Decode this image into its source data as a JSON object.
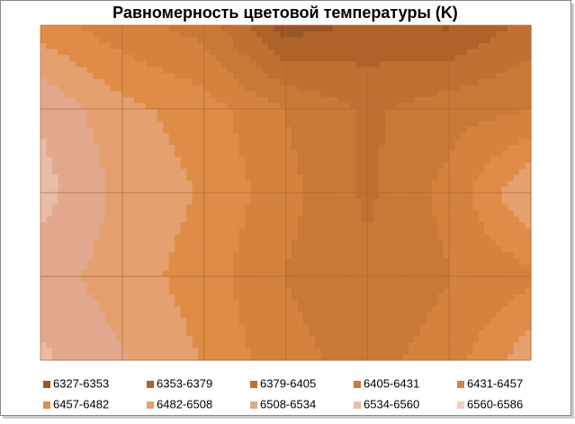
{
  "chart_data": {
    "type": "surface",
    "title": "Равномерность цветовой температуры (K)",
    "values": [
      [
        6470,
        6440,
        6420,
        6340,
        6360,
        6350,
        6390
      ],
      [
        6530,
        6490,
        6470,
        6430,
        6400,
        6420,
        6430
      ],
      [
        6545,
        6500,
        6480,
        6440,
        6400,
        6440,
        6510
      ],
      [
        6520,
        6495,
        6470,
        6430,
        6410,
        6430,
        6450
      ],
      [
        6540,
        6510,
        6480,
        6440,
        6420,
        6445,
        6500
      ]
    ],
    "bands": [
      {
        "name": "6327-6353",
        "min": 6327,
        "max": 6353,
        "color": "#9a5622"
      },
      {
        "name": "6353-6379",
        "min": 6353,
        "max": 6379,
        "color": "#ad6329"
      },
      {
        "name": "6379-6405",
        "min": 6379,
        "max": 6405,
        "color": "#bf7032"
      },
      {
        "name": "6405-6431",
        "min": 6405,
        "max": 6431,
        "color": "#c97936"
      },
      {
        "name": "6431-6457",
        "min": 6431,
        "max": 6457,
        "color": "#d4823c"
      },
      {
        "name": "6457-6482",
        "min": 6457,
        "max": 6482,
        "color": "#de8c46"
      },
      {
        "name": "6482-6508",
        "min": 6482,
        "max": 6508,
        "color": "#e4a06e"
      },
      {
        "name": "6508-6534",
        "min": 6508,
        "max": 6534,
        "color": "#e2a88e"
      },
      {
        "name": "6534-6560",
        "min": 6534,
        "max": 6560,
        "color": "#e8bca6"
      },
      {
        "name": "6560-6586",
        "min": 6560,
        "max": 6586,
        "color": "#f0cfc0"
      }
    ],
    "grid": true
  }
}
